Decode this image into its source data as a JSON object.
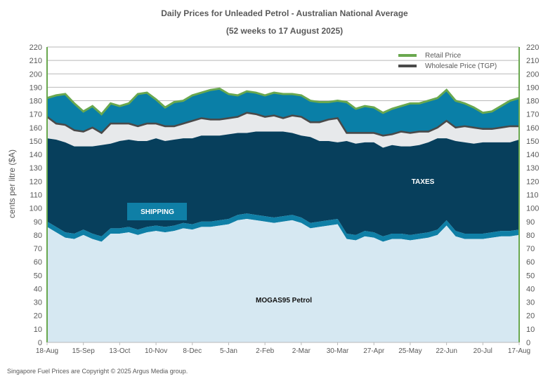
{
  "chart_data": {
    "type": "area",
    "title": "Daily  Prices for Unleaded  Petrol  - Australian  National  Average",
    "subtitle": "(52 weeks to 17 August  2025)",
    "ylabel": "cents per litre ($A)",
    "xlabel": "",
    "ylim": [
      0,
      220
    ],
    "y_ticks": [
      0,
      10,
      20,
      30,
      40,
      50,
      60,
      70,
      80,
      90,
      100,
      110,
      120,
      130,
      140,
      150,
      160,
      170,
      180,
      190,
      200,
      210,
      220
    ],
    "x_ticks": [
      "18-Aug",
      "15-Sep",
      "13-Oct",
      "10-Nov",
      "8-Dec",
      "5-Jan",
      "2-Feb",
      "2-Mar",
      "30-Mar",
      "27-Apr",
      "25-May",
      "22-Jun",
      "20-Jul",
      "17-Aug"
    ],
    "x_tick_dates": [
      "2024-08-18",
      "2024-09-15",
      "2024-10-13",
      "2024-11-10",
      "2024-12-08",
      "2025-01-05",
      "2025-02-02",
      "2025-03-02",
      "2025-03-30",
      "2025-04-27",
      "2025-05-25",
      "2025-06-22",
      "2025-07-20",
      "2025-08-17"
    ],
    "grid": true,
    "legend_position": "top-right",
    "x": [
      "2024-08-18",
      "2024-08-25",
      "2024-09-01",
      "2024-09-08",
      "2024-09-15",
      "2024-09-22",
      "2024-09-29",
      "2024-10-06",
      "2024-10-13",
      "2024-10-20",
      "2024-10-27",
      "2024-11-03",
      "2024-11-10",
      "2024-11-17",
      "2024-11-24",
      "2024-12-01",
      "2024-12-08",
      "2024-12-15",
      "2024-12-22",
      "2024-12-29",
      "2025-01-05",
      "2025-01-12",
      "2025-01-19",
      "2025-01-26",
      "2025-02-02",
      "2025-02-09",
      "2025-02-16",
      "2025-02-23",
      "2025-03-02",
      "2025-03-09",
      "2025-03-16",
      "2025-03-23",
      "2025-03-30",
      "2025-04-06",
      "2025-04-13",
      "2025-04-20",
      "2025-04-27",
      "2025-05-04",
      "2025-05-11",
      "2025-05-18",
      "2025-05-25",
      "2025-06-01",
      "2025-06-08",
      "2025-06-15",
      "2025-06-22",
      "2025-06-29",
      "2025-07-06",
      "2025-07-13",
      "2025-07-20",
      "2025-07-27",
      "2025-08-03",
      "2025-08-10",
      "2025-08-17"
    ],
    "series": [
      {
        "name": "MOGAS95 Petrol",
        "values": [
          86,
          82,
          78,
          77,
          80,
          77,
          75,
          81,
          81,
          82,
          80,
          82,
          83,
          82,
          83,
          85,
          84,
          86,
          86,
          87,
          88,
          91,
          92,
          91,
          90,
          89,
          90,
          91,
          89,
          85,
          86,
          87,
          88,
          77,
          76,
          79,
          78,
          75,
          77,
          77,
          76,
          77,
          78,
          80,
          87,
          79,
          77,
          77,
          77,
          78,
          79,
          79,
          80
        ],
        "color": "#d6e8f2"
      },
      {
        "name": "SHIPPING",
        "values": [
          4,
          4,
          4,
          4,
          4,
          4,
          4,
          4,
          4,
          4,
          4,
          4,
          4,
          4,
          4,
          4,
          4,
          4,
          4,
          4,
          4,
          4,
          4,
          4,
          4,
          4,
          4,
          4,
          4,
          4,
          4,
          4,
          4,
          4,
          4,
          4,
          4,
          4,
          4,
          4,
          4,
          4,
          4,
          4,
          4,
          4,
          4,
          4,
          4,
          4,
          4,
          4,
          4
        ],
        "color": "#0f7fa6"
      },
      {
        "name": "TAXES",
        "values": [
          62,
          65,
          67,
          65,
          62,
          65,
          68,
          63,
          65,
          65,
          66,
          64,
          65,
          64,
          64,
          63,
          64,
          64,
          64,
          63,
          63,
          61,
          60,
          62,
          63,
          64,
          63,
          61,
          61,
          64,
          60,
          59,
          57,
          69,
          68,
          66,
          67,
          66,
          66,
          65,
          66,
          66,
          67,
          68,
          61,
          67,
          68,
          67,
          68,
          67,
          66,
          66,
          67
        ],
        "color": "#073f5c"
      },
      {
        "name": "Wholesale Price (TGP)",
        "values": [
          168,
          163,
          162,
          158,
          157,
          160,
          156,
          163,
          163,
          163,
          161,
          163,
          163,
          161,
          161,
          163,
          165,
          167,
          166,
          166,
          167,
          168,
          171,
          170,
          168,
          169,
          167,
          169,
          168,
          164,
          164,
          166,
          167,
          156,
          156,
          156,
          156,
          154,
          155,
          157,
          156,
          157,
          157,
          160,
          165,
          160,
          161,
          160,
          159,
          159,
          160,
          161,
          161
        ],
        "color": "#4a4a4a"
      },
      {
        "name": "Retail Price",
        "values": [
          182,
          184,
          185,
          178,
          172,
          176,
          170,
          178,
          176,
          178,
          185,
          186,
          181,
          175,
          179,
          180,
          184,
          186,
          188,
          189,
          185,
          184,
          187,
          186,
          184,
          186,
          185,
          185,
          184,
          180,
          179,
          179,
          180,
          179,
          174,
          176,
          175,
          171,
          174,
          176,
          178,
          178,
          180,
          182,
          188,
          180,
          178,
          175,
          171,
          172,
          176,
          180,
          182
        ],
        "color": "#6aa84f"
      }
    ],
    "area_labels": {
      "shipping": "SHIPPING",
      "taxes": "TAXES",
      "mogas": "MOGAS95 Petrol"
    },
    "legend": [
      {
        "name": "Retail Price",
        "color": "#6aa84f"
      },
      {
        "name": "Wholesale Price (TGP)",
        "color": "#4a4a4a"
      }
    ],
    "colors": {
      "retail_band": "#0a7fa7",
      "wholesale_margin_band": "#e7e9eb",
      "taxes": "#073f5c",
      "shipping": "#0f7fa6",
      "mogas": "#d6e8f2",
      "grid": "#b9b9b9",
      "axis_text": "#595959"
    }
  },
  "footer": {
    "copyright": "Singapore  Fuel Prices are  Copyright © 2025 Argus Media  group."
  }
}
